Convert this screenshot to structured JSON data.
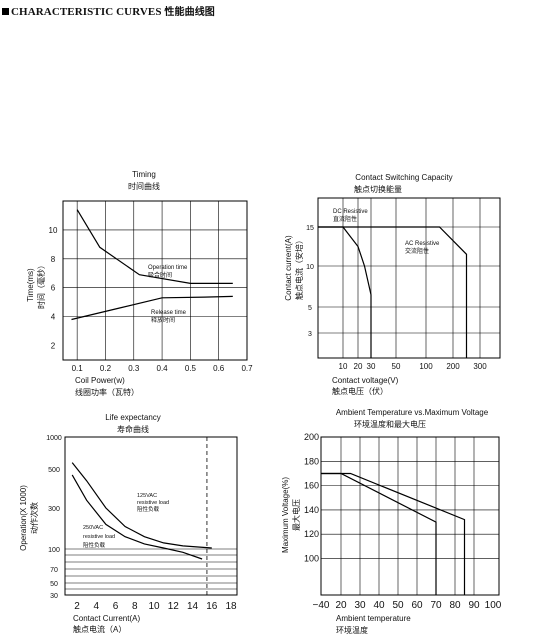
{
  "heading": {
    "title_en": "CHARACTERISTIC CURVES",
    "title_zh": "性能曲线图"
  },
  "chart_data": [
    {
      "id": "timing",
      "type": "line",
      "title": "Timing",
      "subtitle": "时间曲线",
      "xlabel": "Coil Power(w)",
      "xlabel_zh": "线圈功率（瓦特）",
      "ylabel": "Time(ms)",
      "ylabel_zh": "时间（毫秒）",
      "xlim": [
        0.05,
        0.7
      ],
      "ylim": [
        1,
        12
      ],
      "xticks": [
        "0.1",
        "0.2",
        "0.3",
        "0.4",
        "0.5",
        "0.6",
        "0.7"
      ],
      "yticks": [
        "2",
        "4",
        "6",
        "8",
        "10"
      ],
      "xgrid": [
        0.1,
        0.2,
        0.3,
        0.4,
        0.5,
        0.6
      ],
      "ygrid": [
        4,
        6,
        8,
        10
      ],
      "grid": true,
      "series": [
        {
          "name": "Operation time",
          "name_zh": "吸合时间",
          "x": [
            0.1,
            0.18,
            0.32,
            0.5,
            0.65
          ],
          "y": [
            11.4,
            8.8,
            6.9,
            6.3,
            6.3
          ]
        },
        {
          "name": "Release time",
          "name_zh": "释放时间",
          "x": [
            0.08,
            0.25,
            0.4,
            0.55,
            0.65
          ],
          "y": [
            3.8,
            4.6,
            5.3,
            5.35,
            5.4
          ]
        }
      ]
    },
    {
      "id": "switching",
      "type": "line",
      "title": "Contact Switching Capacity",
      "subtitle": "触点切换能量",
      "xlabel": "Contact voltage(V)",
      "xlabel_zh": "触点电压（伏）",
      "ylabel": "Contact current(A)",
      "ylabel_zh": "触点电流（安培）",
      "xticks": [
        "10",
        "20",
        "30",
        "50",
        "100",
        "200",
        "300"
      ],
      "yticks": [
        "15",
        "10",
        "5",
        "3"
      ],
      "grid": true,
      "series": [
        {
          "name": "DC Resistive",
          "name_zh": "直流阻性",
          "x": [
            0,
            10,
            20,
            25,
            30,
            30
          ],
          "y": [
            15,
            15,
            12.5,
            10,
            6.5,
            0
          ]
        },
        {
          "name": "AC Resistive",
          "name_zh": "交流阻性",
          "x": [
            0,
            150,
            250,
            250
          ],
          "y": [
            15,
            15,
            11.5,
            0
          ]
        }
      ]
    },
    {
      "id": "life",
      "type": "line",
      "title": "Life expectancy",
      "subtitle": "寿命曲线",
      "xlabel": "Contact Current(A)",
      "xlabel_zh": "触点电流（A）",
      "ylabel": "Operation(X 1000)",
      "ylabel_zh": "动作次数",
      "xticks": [
        "2",
        "4",
        "6",
        "8",
        "10",
        "12",
        "14",
        "16",
        "18"
      ],
      "yticks": [
        "1000",
        "500",
        "300",
        "100",
        "70",
        "50",
        "30"
      ],
      "grid": true,
      "series": [
        {
          "name": "125VAC resistive load",
          "name_zh": "阻性负载",
          "x": [
            1.5,
            3,
            5,
            7,
            9,
            11,
            13,
            16
          ],
          "y": [
            600,
            440,
            300,
            210,
            160,
            130,
            115,
            105
          ]
        },
        {
          "name": "250VAC resistive load",
          "name_zh": "阻性负载",
          "x": [
            1.5,
            3,
            5,
            7,
            9,
            11,
            13,
            15
          ],
          "y": [
            470,
            340,
            220,
            160,
            125,
            105,
            95,
            85
          ]
        }
      ],
      "marker_x": 15.5
    },
    {
      "id": "ambient",
      "type": "line",
      "title": "Ambient Temperature vs.Maximum Voltage",
      "subtitle": "环境温度和最大电压",
      "xlabel": "Ambient temperature",
      "xlabel_zh": "环境温度",
      "ylabel": "Maximum Voltage(%)",
      "ylabel_zh": "最大电压",
      "xlim": [
        -40,
        100
      ],
      "ylim": [
        70,
        200
      ],
      "xticks": [
        "−40",
        "20",
        "30",
        "40",
        "50",
        "60",
        "70",
        "80",
        "90",
        "100"
      ],
      "yticks": [
        "200",
        "180",
        "160",
        "140",
        "120",
        "100"
      ],
      "grid": true,
      "series": [
        {
          "x": [
            -40,
            20,
            70,
            70
          ],
          "y": [
            170,
            170,
            130,
            70
          ]
        },
        {
          "x": [
            -40,
            25,
            85,
            85
          ],
          "y": [
            170,
            170,
            132,
            70
          ]
        }
      ]
    }
  ]
}
